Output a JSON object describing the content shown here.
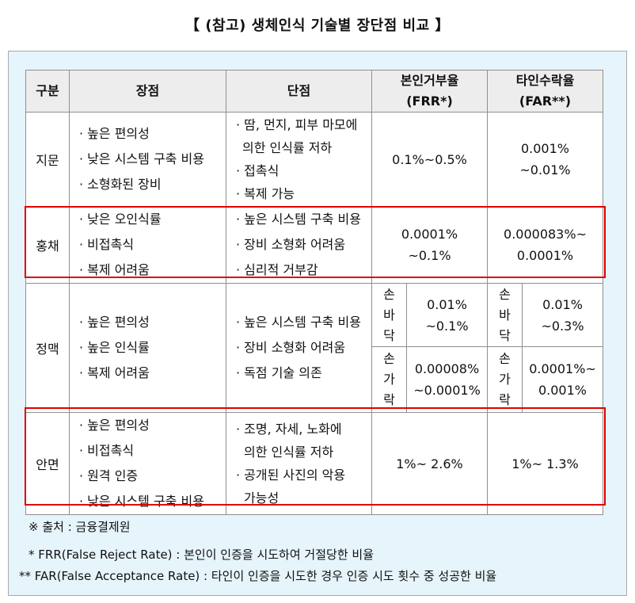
{
  "title": "【 (참고) 생체인식 기술별 장단점 비교 】",
  "table": {
    "headers": {
      "category": "구분",
      "pros": "장점",
      "cons": "단점",
      "frr_line1": "본인거부율",
      "frr_line2": "(FRR*)",
      "far_line1": "타인수락율",
      "far_line2": "(FAR**)"
    },
    "rows": [
      {
        "name": "지문",
        "pros": [
          "높은 편의성",
          "낮은 시스템 구축 비용",
          "소형화된 장비"
        ],
        "cons": [
          "땀, 먼지, 피부 마모에",
          "의한 인식률 저하",
          "접촉식",
          "복제 가능"
        ],
        "frr": "0.1%~0.5%",
        "far_line1": "0.001%",
        "far_line2": "~0.01%"
      },
      {
        "name": "홍채",
        "pros": [
          "낮은 오인식률",
          "비접촉식",
          "복제 어려움"
        ],
        "cons": [
          "높은 시스템 구축 비용",
          "장비 소형화 어려움",
          "심리적 거부감"
        ],
        "frr_line1": "0.0001%",
        "frr_line2": "~0.1%",
        "far_line1": "0.000083%~",
        "far_line2": "0.0001%"
      },
      {
        "name": "정맥",
        "pros": [
          "높은 편의성",
          "높은 인식률",
          "복제 어려움"
        ],
        "cons": [
          "높은 시스템 구축 비용",
          "장비 소형화 어려움",
          "독점 기술 의존"
        ],
        "sub": [
          {
            "label": [
              "손",
              "바",
              "닥"
            ],
            "frr_line1": "0.01%",
            "frr_line2": "~0.1%",
            "far_line1": "0.01%",
            "far_line2": "~0.3%"
          },
          {
            "label": [
              "손",
              "가",
              "락"
            ],
            "frr_line1": "0.00008%",
            "frr_line2": "~0.0001%",
            "far_line1": "0.0001%~",
            "far_line2": "0.001%"
          }
        ]
      },
      {
        "name": "안면",
        "pros": [
          "높은 편의성",
          "비접촉식",
          "원격 인증",
          "낮은 시스템 구축 비용"
        ],
        "cons": [
          "조명, 자세, 노화에",
          "의한 인식률 저하",
          "공개된 사진의 악용",
          "가능성"
        ],
        "frr": "1%~ 2.6%",
        "far": "1%~ 1.3%"
      }
    ]
  },
  "notes": {
    "source": "※ 출처 : 금융결제원",
    "frr_def": "* FRR(False Reject Rate) : 본인이 인증을 시도하여 거절당한 비율",
    "far_def": "** FAR(False Acceptance Rate) : 타인이 인증을 시도한 경우 인증 시도 횟수 중 성공한 비율"
  },
  "colors": {
    "highlight_border": "#e10000",
    "panel_bg": "#e6f4fb",
    "header_bg": "#ededed"
  }
}
